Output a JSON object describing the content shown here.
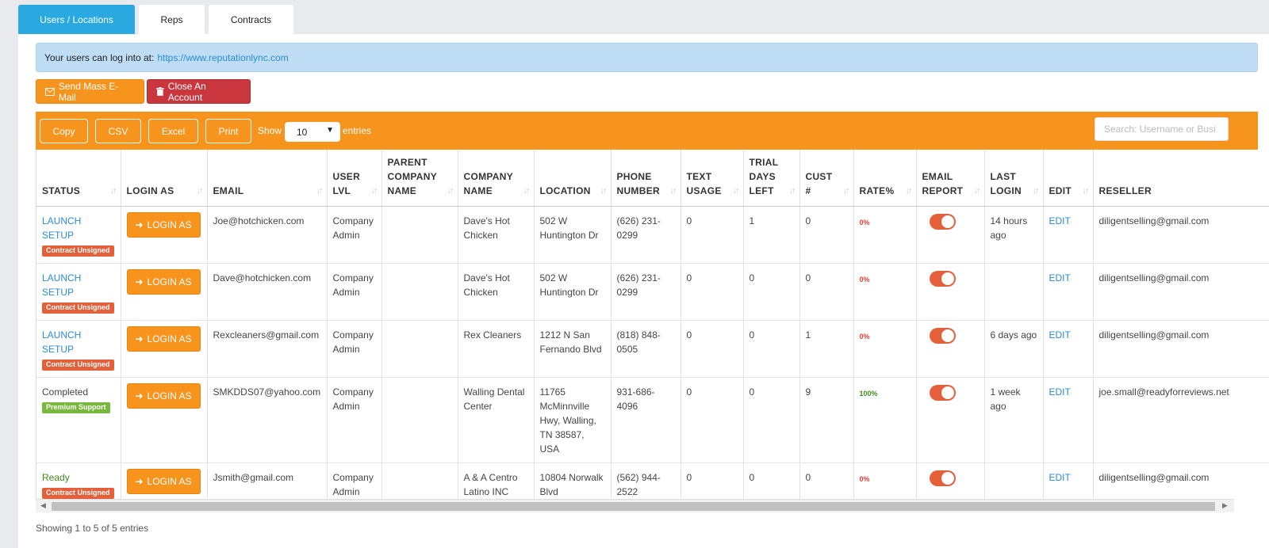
{
  "tabs": [
    {
      "label": "Users / Locations"
    },
    {
      "label": "Reps"
    },
    {
      "label": "Contracts"
    }
  ],
  "info": {
    "text": "Your users can log into at:",
    "link": "https://www.reputationlync.com"
  },
  "actions": {
    "mass_email": "Send Mass E-Mail",
    "close_account": "Close An Account"
  },
  "toolbar": {
    "copy": "Copy",
    "csv": "CSV",
    "excel": "Excel",
    "print": "Print",
    "show": "Show",
    "length_value": "10",
    "entries": "entries",
    "search_placeholder": "Search: Username or Busi"
  },
  "columns": {
    "status": "STATUS",
    "login_as": "LOGIN AS",
    "email": "EMAIL",
    "user_lvl": "USER LVL",
    "parent_company": "PARENT COMPANY NAME",
    "company_name": "COMPANY NAME",
    "location": "LOCATION",
    "phone": "PHONE NUMBER",
    "text_usage": "TEXT USAGE",
    "trial_days": "TRIAL DAYS LEFT",
    "cust": "CUST #",
    "rate": "RATE%",
    "email_report": "EMAIL REPORT",
    "last_login": "LAST LOGIN",
    "edit": "EDIT",
    "reseller": "RESELLER"
  },
  "login_label": "LOGIN AS",
  "edit_label": "EDIT",
  "rows": [
    {
      "status": "LAUNCH SETUP",
      "badge": "Contract Unsigned",
      "email": "Joe@hotchicken.com",
      "user_lvl": "Company Admin",
      "parent": "",
      "company": "Dave's Hot Chicken",
      "location": "502 W Huntington Dr",
      "phone": "(626) 231-0299",
      "text_usage": "0",
      "trial_days": "1",
      "cust": "0",
      "rate": "0%",
      "email_report": true,
      "last_login": "14 hours ago",
      "reseller": "diligentselling@gmail.com"
    },
    {
      "status": "LAUNCH SETUP",
      "badge": "Contract Unsigned",
      "email": "Dave@hotchicken.com",
      "user_lvl": "Company Admin",
      "parent": "",
      "company": "Dave's Hot Chicken",
      "location": "502 W Huntington Dr",
      "phone": "(626) 231-0299",
      "text_usage": "0",
      "trial_days": "0",
      "cust": "0",
      "rate": "0%",
      "email_report": true,
      "last_login": "",
      "reseller": "diligentselling@gmail.com"
    },
    {
      "status": "LAUNCH SETUP",
      "badge": "Contract Unsigned",
      "email": "Rexcleaners@gmail.com",
      "user_lvl": "Company Admin",
      "parent": "",
      "company": "Rex Cleaners",
      "location": "1212 N San Fernando Blvd",
      "phone": "(818) 848-0505",
      "text_usage": "0",
      "trial_days": "0",
      "cust": "1",
      "rate": "0%",
      "email_report": true,
      "last_login": "6 days ago",
      "reseller": "diligentselling@gmail.com"
    },
    {
      "status": "Completed",
      "badge": "Premium Support",
      "email": "SMKDDS07@yahoo.com",
      "user_lvl": "Company Admin",
      "parent": "",
      "company": "Walling Dental Center",
      "location": "11765 McMinnville Hwy, Walling, TN 38587, USA",
      "phone": "931-686-4096",
      "text_usage": "0",
      "trial_days": "0",
      "cust": "9",
      "rate": "100%",
      "email_report": true,
      "last_login": "1 week ago",
      "reseller": "joe.small@readyforreviews.net"
    },
    {
      "status": "Ready",
      "badge": "Contract Unsigned",
      "email": "Jsmith@gmail.com",
      "user_lvl": "Company Admin",
      "parent": "",
      "company": "A & A Centro Latino INC",
      "location": "10804 Norwalk Blvd",
      "phone": "(562) 944-2522",
      "text_usage": "0",
      "trial_days": "0",
      "cust": "0",
      "rate": "0%",
      "email_report": true,
      "last_login": "",
      "reseller": "diligentselling@gmail.com"
    }
  ],
  "footer": "Showing 1 to 5 of 5 entries",
  "colors": {
    "accent": "#f7941d",
    "tab_active": "#29a9e0",
    "danger": "#c9363e",
    "link": "#2a8bd0"
  }
}
